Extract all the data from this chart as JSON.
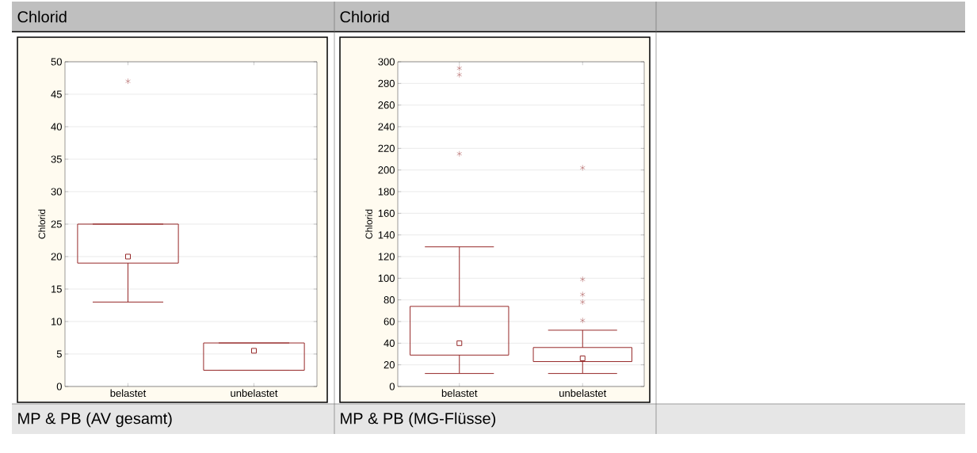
{
  "chart_data": [
    {
      "type": "box",
      "title": "Chlorid",
      "ylabel": "Chlorid",
      "categories": [
        "belastet",
        "unbelastet"
      ],
      "color": "#962828",
      "ylim": [
        0,
        50
      ],
      "yticks": [
        0,
        5,
        10,
        15,
        20,
        25,
        30,
        35,
        40,
        45,
        50
      ],
      "grid": "y",
      "marker": "square",
      "boxes": [
        {
          "low": 13,
          "q1": 19,
          "median": 20,
          "q3": 25,
          "high": 25,
          "outliers": [
            47
          ]
        },
        {
          "low": 2.5,
          "q1": 2.5,
          "median": 5.5,
          "q3": 6.7,
          "high": 6.7
        }
      ],
      "annotations": [
        "MP & PB (AV gesamt)"
      ]
    },
    {
      "type": "box",
      "title": "Chlorid",
      "ylabel": "Chlorid",
      "categories": [
        "belastet",
        "unbelastet"
      ],
      "color": "#962828",
      "ylim": [
        0,
        300
      ],
      "yticks": [
        0,
        20,
        40,
        60,
        80,
        100,
        120,
        140,
        160,
        180,
        200,
        220,
        240,
        260,
        280,
        300
      ],
      "grid": "y",
      "marker": "square",
      "boxes": [
        {
          "low": 12,
          "q1": 29,
          "median": 40,
          "q3": 74,
          "high": 129,
          "outliers": [
            215,
            288,
            294
          ]
        },
        {
          "low": 12,
          "q1": 23,
          "median": 26,
          "q3": 36,
          "high": 52,
          "outliers": [
            61,
            78,
            85,
            99,
            202
          ]
        }
      ],
      "annotations": [
        "MP & PB (MG-Flüsse)"
      ]
    }
  ]
}
